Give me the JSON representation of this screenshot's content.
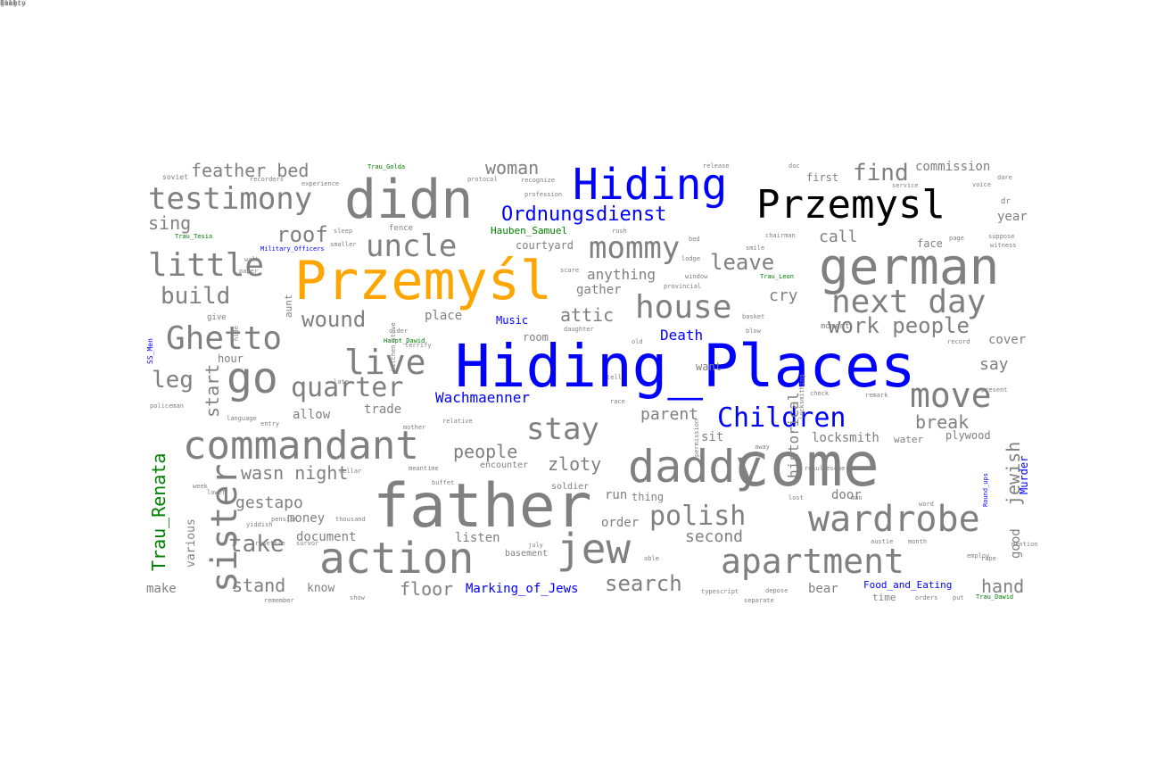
{
  "colors": {
    "gray": "#808080",
    "blue": "#0000ff",
    "orange": "#ffa500",
    "black": "#000000",
    "green": "#008000"
  },
  "words": [
    {
      "text": "Hiding_Places",
      "color": "blue",
      "rot": 0
    },
    {
      "text": "father",
      "color": "gray",
      "rot": 0
    },
    {
      "text": "come",
      "color": "gray",
      "rot": 0
    },
    {
      "text": "Przemyśl",
      "color": "orange",
      "rot": 0
    },
    {
      "text": "didn",
      "color": "gray",
      "rot": 0
    },
    {
      "text": "german",
      "color": "gray",
      "rot": 0
    },
    {
      "text": "daddy",
      "color": "gray",
      "rot": 0
    },
    {
      "text": "action",
      "color": "gray",
      "rot": 0
    },
    {
      "text": "commandant",
      "color": "gray",
      "rot": 0
    },
    {
      "text": "Hiding",
      "color": "blue",
      "rot": 0
    },
    {
      "text": "Przemysl",
      "color": "black",
      "rot": 0
    },
    {
      "text": "jew",
      "color": "gray",
      "rot": 0
    },
    {
      "text": "apartment",
      "color": "gray",
      "rot": 0
    },
    {
      "text": "wardrobe",
      "color": "gray",
      "rot": 0
    },
    {
      "text": "go",
      "color": "gray",
      "rot": 0
    },
    {
      "text": "sister",
      "color": "gray",
      "rot": 90
    },
    {
      "text": "testimony",
      "color": "gray",
      "rot": 0
    },
    {
      "text": "little",
      "color": "gray",
      "rot": 0
    },
    {
      "text": "Ghetto",
      "color": "gray",
      "rot": 0
    },
    {
      "text": "live",
      "color": "gray",
      "rot": 0
    },
    {
      "text": "uncle",
      "color": "gray",
      "rot": 0
    },
    {
      "text": "mommy",
      "color": "gray",
      "rot": 0
    },
    {
      "text": "house",
      "color": "gray",
      "rot": 0
    },
    {
      "text": "next day",
      "color": "gray",
      "rot": 0
    },
    {
      "text": "move",
      "color": "gray",
      "rot": 0
    },
    {
      "text": "stay",
      "color": "gray",
      "rot": 0
    },
    {
      "text": "polish",
      "color": "gray",
      "rot": 0
    },
    {
      "text": "quarter",
      "color": "gray",
      "rot": 0
    },
    {
      "text": "Children",
      "color": "blue",
      "rot": 0
    },
    {
      "text": "roof",
      "color": "gray",
      "rot": 0
    },
    {
      "text": "build",
      "color": "gray",
      "rot": 0
    },
    {
      "text": "leave",
      "color": "gray",
      "rot": 0
    },
    {
      "text": "find",
      "color": "gray",
      "rot": 0
    },
    {
      "text": "wound",
      "color": "gray",
      "rot": 0
    },
    {
      "text": "leg",
      "color": "gray",
      "rot": 0
    },
    {
      "text": "work people",
      "color": "gray",
      "rot": 0
    },
    {
      "text": "take",
      "color": "gray",
      "rot": 0
    },
    {
      "text": "search",
      "color": "gray",
      "rot": 0
    },
    {
      "text": "Ordnungsdienst",
      "color": "blue",
      "rot": 0
    },
    {
      "text": "feather bed",
      "color": "gray",
      "rot": 0
    },
    {
      "text": "woman",
      "color": "gray",
      "rot": 0
    },
    {
      "text": "sing",
      "color": "gray",
      "rot": 0
    },
    {
      "text": "call",
      "color": "gray",
      "rot": 0
    },
    {
      "text": "cry",
      "color": "gray",
      "rot": 0
    },
    {
      "text": "attic",
      "color": "gray",
      "rot": 0
    },
    {
      "text": "Wachmaenner",
      "color": "blue",
      "rot": 0
    },
    {
      "text": "Death",
      "color": "blue",
      "rot": 0
    },
    {
      "text": "start",
      "color": "gray",
      "rot": 90
    },
    {
      "text": "jewish",
      "color": "gray",
      "rot": 90
    },
    {
      "text": "Trau_Renata",
      "color": "green",
      "rot": 90
    },
    {
      "text": "stand",
      "color": "gray",
      "rot": 0
    },
    {
      "text": "gestapo",
      "color": "gray",
      "rot": 0
    },
    {
      "text": "people",
      "color": "gray",
      "rot": 0
    },
    {
      "text": "wasn night",
      "color": "gray",
      "rot": 0
    },
    {
      "text": "zloty",
      "color": "gray",
      "rot": 0
    },
    {
      "text": "parent",
      "color": "gray",
      "rot": 0
    },
    {
      "text": "break",
      "color": "gray",
      "rot": 0
    },
    {
      "text": "say",
      "color": "gray",
      "rot": 0
    },
    {
      "text": "second",
      "color": "gray",
      "rot": 0
    },
    {
      "text": "floor",
      "color": "gray",
      "rot": 0
    },
    {
      "text": "hand",
      "color": "gray",
      "rot": 0
    },
    {
      "text": "Marking_of_Jews",
      "color": "blue",
      "rot": 0
    },
    {
      "text": "Music",
      "color": "blue",
      "rot": 0
    },
    {
      "text": "Murder",
      "color": "blue",
      "rot": 90
    },
    {
      "text": "commission",
      "color": "gray",
      "rot": 0
    },
    {
      "text": "anything",
      "color": "gray",
      "rot": 0
    },
    {
      "text": "gather",
      "color": "gray",
      "rot": 0
    },
    {
      "text": "place",
      "color": "gray",
      "rot": 0
    },
    {
      "text": "allow",
      "color": "gray",
      "rot": 0
    },
    {
      "text": "trade",
      "color": "gray",
      "rot": 0
    },
    {
      "text": "money",
      "color": "gray",
      "rot": 0
    },
    {
      "text": "document",
      "color": "gray",
      "rot": 0
    },
    {
      "text": "listen",
      "color": "gray",
      "rot": 0
    },
    {
      "text": "order",
      "color": "gray",
      "rot": 0
    },
    {
      "text": "locksmith",
      "color": "gray",
      "rot": 0
    },
    {
      "text": "door",
      "color": "gray",
      "rot": 0
    },
    {
      "text": "bear",
      "color": "gray",
      "rot": 0
    },
    {
      "text": "make",
      "color": "gray",
      "rot": 0
    },
    {
      "text": "know",
      "color": "gray",
      "rot": 0
    },
    {
      "text": "historical",
      "color": "gray",
      "rot": 90
    },
    {
      "text": "good",
      "color": "gray",
      "rot": 90
    },
    {
      "text": "various",
      "color": "gray",
      "rot": 90
    },
    {
      "text": "year",
      "color": "gray",
      "rot": 0
    },
    {
      "text": "cover",
      "color": "gray",
      "rot": 0
    },
    {
      "text": "hour",
      "color": "gray",
      "rot": 0
    },
    {
      "text": "Hauben_Samuel",
      "color": "green",
      "rot": 0
    },
    {
      "text": "courtyard",
      "color": "gray",
      "rot": 0
    },
    {
      "text": "soldier",
      "color": "gray",
      "rot": 0
    },
    {
      "text": "encounter",
      "color": "gray",
      "rot": 0
    },
    {
      "text": "basement",
      "color": "gray",
      "rot": 0
    },
    {
      "text": "sit",
      "color": "gray",
      "rot": 0
    },
    {
      "text": "run",
      "color": "gray",
      "rot": 0
    },
    {
      "text": "thing",
      "color": "gray",
      "rot": 0
    },
    {
      "text": "want",
      "color": "gray",
      "rot": 0
    },
    {
      "text": "plywood",
      "color": "gray",
      "rot": 0
    },
    {
      "text": "water",
      "color": "gray",
      "rot": 0
    },
    {
      "text": "first",
      "color": "gray",
      "rot": 0
    },
    {
      "text": "face",
      "color": "gray",
      "rot": 0
    },
    {
      "text": "Military_Officers",
      "color": "blue",
      "rot": 0
    },
    {
      "text": "Trau_Golda",
      "color": "green",
      "rot": 0
    },
    {
      "text": "Trau_Tesia",
      "color": "green",
      "rot": 0
    },
    {
      "text": "Trau_Leon",
      "color": "green",
      "rot": 0
    },
    {
      "text": "Haupt_Dawid",
      "color": "green",
      "rot": 0
    },
    {
      "text": "Trau_Dawid",
      "color": "green",
      "rot": 0
    },
    {
      "text": "SS_Men",
      "color": "blue",
      "rot": 90
    },
    {
      "text": "Round_ups",
      "color": "blue",
      "rot": 90
    },
    {
      "text": "Food_and_Eating",
      "color": "blue",
      "rot": 0
    },
    {
      "text": "soviet",
      "color": "gray",
      "rot": 0
    },
    {
      "text": "recorders",
      "color": "gray",
      "rot": 0
    },
    {
      "text": "experience",
      "color": "gray",
      "rot": 0
    },
    {
      "text": "protocol",
      "color": "gray",
      "rot": 0
    },
    {
      "text": "recognize",
      "color": "gray",
      "rot": 0
    },
    {
      "text": "profession",
      "color": "gray",
      "rot": 0
    },
    {
      "text": "release",
      "color": "gray",
      "rot": 0
    },
    {
      "text": "doc",
      "color": "gray",
      "rot": 0
    },
    {
      "text": "service",
      "color": "gray",
      "rot": 0
    },
    {
      "text": "dare",
      "color": "gray",
      "rot": 0
    },
    {
      "text": "voice",
      "color": "gray",
      "rot": 0
    },
    {
      "text": "dr",
      "color": "gray",
      "rot": 0
    },
    {
      "text": "time",
      "color": "gray",
      "rot": 0
    },
    {
      "text": "page",
      "color": "gray",
      "rot": 0
    },
    {
      "text": "suppose",
      "color": "gray",
      "rot": 0
    },
    {
      "text": "witness",
      "color": "gray",
      "rot": 0
    },
    {
      "text": "record",
      "color": "gray",
      "rot": 0
    },
    {
      "text": "chairman",
      "color": "gray",
      "rot": 0
    },
    {
      "text": "smile",
      "color": "gray",
      "rot": 0
    },
    {
      "text": "provincial",
      "color": "gray",
      "rot": 0
    },
    {
      "text": "aunt",
      "color": "gray",
      "rot": 90
    },
    {
      "text": "room",
      "color": "gray",
      "rot": 0
    },
    {
      "text": "daughter",
      "color": "gray",
      "rot": 0
    },
    {
      "text": "give",
      "color": "gray",
      "rot": 0
    },
    {
      "text": "walk",
      "color": "gray",
      "rot": 0
    },
    {
      "text": "paper",
      "color": "gray",
      "rot": 0
    },
    {
      "text": "fence",
      "color": "gray",
      "rot": 0
    },
    {
      "text": "sleep",
      "color": "gray",
      "rot": 0
    },
    {
      "text": "smaller",
      "color": "gray",
      "rot": 0
    },
    {
      "text": "older",
      "color": "gray",
      "rot": 0
    },
    {
      "text": "terrify",
      "color": "gray",
      "rot": 0
    },
    {
      "text": "scare",
      "color": "gray",
      "rot": 0
    },
    {
      "text": "rush",
      "color": "gray",
      "rot": 0
    },
    {
      "text": "blow",
      "color": "gray",
      "rot": 0
    },
    {
      "text": "check",
      "color": "gray",
      "rot": 0
    },
    {
      "text": "remark",
      "color": "gray",
      "rot": 0
    },
    {
      "text": "present",
      "color": "gray",
      "rot": 0
    },
    {
      "text": "race",
      "color": "gray",
      "rot": 0
    },
    {
      "text": "relative",
      "color": "gray",
      "rot": 0
    },
    {
      "text": "policeman",
      "color": "gray",
      "rot": 0
    },
    {
      "text": "language",
      "color": "gray",
      "rot": 0
    },
    {
      "text": "entry",
      "color": "gray",
      "rot": 0
    },
    {
      "text": "mother",
      "color": "gray",
      "rot": 0
    },
    {
      "text": "july",
      "color": "gray",
      "rot": 0
    },
    {
      "text": "yiddish",
      "color": "gray",
      "rot": 0
    },
    {
      "text": "pension",
      "color": "gray",
      "rot": 0
    },
    {
      "text": "thousand",
      "color": "gray",
      "rot": 0
    },
    {
      "text": "resettle",
      "color": "gray",
      "rot": 0
    },
    {
      "text": "survor",
      "color": "gray",
      "rot": 0
    },
    {
      "text": "able",
      "color": "gray",
      "rot": 0
    },
    {
      "text": "typescript",
      "color": "gray",
      "rot": 0
    },
    {
      "text": "depose",
      "color": "gray",
      "rot": 0
    },
    {
      "text": "separate",
      "color": "gray",
      "rot": 0
    },
    {
      "text": "austie",
      "color": "gray",
      "rot": 0
    },
    {
      "text": "month",
      "color": "gray",
      "rot": 0
    },
    {
      "text": "employ",
      "color": "gray",
      "rot": 0
    },
    {
      "text": "rape",
      "color": "gray",
      "rot": 0
    },
    {
      "text": "word",
      "color": "gray",
      "rot": 0
    },
    {
      "text": "orders",
      "color": "gray",
      "rot": 0
    },
    {
      "text": "put",
      "color": "gray",
      "rot": 0
    },
    {
      "text": "show",
      "color": "gray",
      "rot": 0
    },
    {
      "text": "remember",
      "color": "gray",
      "rot": 0
    },
    {
      "text": "meantime",
      "color": "gray",
      "rot": 0
    },
    {
      "text": "buffet",
      "color": "gray",
      "rot": 0
    },
    {
      "text": "away",
      "color": "gray",
      "rot": 0
    },
    {
      "text": "result",
      "color": "gray",
      "rot": 0
    },
    {
      "text": "rescue",
      "color": "gray",
      "rot": 0
    },
    {
      "text": "old",
      "color": "gray",
      "rot": 0
    },
    {
      "text": "basket",
      "color": "gray",
      "rot": 0
    },
    {
      "text": "lodge",
      "color": "gray",
      "rot": 0
    },
    {
      "text": "bed",
      "color": "gray",
      "rot": 0
    },
    {
      "text": "lost",
      "color": "gray",
      "rot": 0
    },
    {
      "text": "man",
      "color": "gray",
      "rot": 0
    },
    {
      "text": "week",
      "color": "gray",
      "rot": 0
    },
    {
      "text": "moment",
      "color": "gray",
      "rot": 0
    },
    {
      "text": "lower",
      "color": "gray",
      "rot": 0
    },
    {
      "text": "hide",
      "color": "gray",
      "rot": 90
    },
    {
      "text": "tell",
      "color": "gray",
      "rot": 0
    },
    {
      "text": "late",
      "color": "gray",
      "rot": 0
    },
    {
      "text": "cellar",
      "color": "gray",
      "rot": 0
    },
    {
      "text": "window",
      "color": "gray",
      "rot": 0
    },
    {
      "text": "permission",
      "color": "gray",
      "rot": 90
    },
    {
      "text": "locksmithing",
      "color": "gray",
      "rot": 90
    },
    {
      "text": "kitchen stove",
      "color": "gray",
      "rot": 90
    },
    {
      "text": "mention",
      "color": "gray",
      "rot": 0
    },
    {
      "text": "hungry",
      "color": "gray",
      "rot": 0
    },
    {
      "text": "doubt",
      "color": "gray",
      "rot": 0
    },
    {
      "text": "fall",
      "color": "gray",
      "rot": 0
    },
    {
      "text": "ghetto",
      "color": "gray",
      "rot": 0
    },
    {
      "text": "line",
      "color": "gray",
      "rot": 0
    }
  ]
}
